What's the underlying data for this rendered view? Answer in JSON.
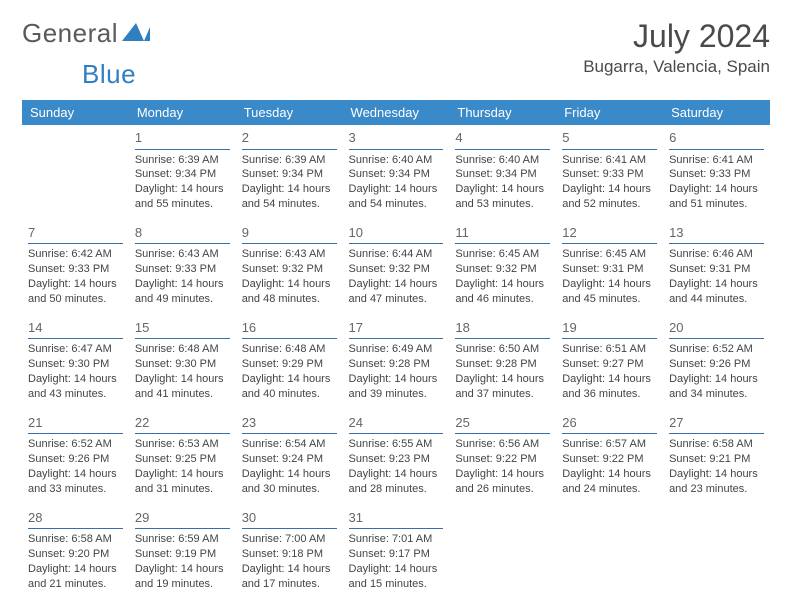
{
  "logo": {
    "part1": "General",
    "part2": "Blue"
  },
  "header": {
    "title": "July 2024",
    "location": "Bugarra, Valencia, Spain"
  },
  "colors": {
    "accent": "#3a89c9",
    "rule": "#3a6fa5",
    "text": "#444",
    "bg": "#ffffff"
  },
  "calendar": {
    "type": "table",
    "columns": [
      "Sunday",
      "Monday",
      "Tuesday",
      "Wednesday",
      "Thursday",
      "Friday",
      "Saturday"
    ],
    "daynum_fontsize": 13,
    "body_fontsize": 11,
    "header_fontsize": 13,
    "weeks": [
      [
        {
          "day": "",
          "lines": []
        },
        {
          "day": "1",
          "lines": [
            "Sunrise: 6:39 AM",
            "Sunset: 9:34 PM",
            "Daylight: 14 hours",
            "and 55 minutes."
          ]
        },
        {
          "day": "2",
          "lines": [
            "Sunrise: 6:39 AM",
            "Sunset: 9:34 PM",
            "Daylight: 14 hours",
            "and 54 minutes."
          ]
        },
        {
          "day": "3",
          "lines": [
            "Sunrise: 6:40 AM",
            "Sunset: 9:34 PM",
            "Daylight: 14 hours",
            "and 54 minutes."
          ]
        },
        {
          "day": "4",
          "lines": [
            "Sunrise: 6:40 AM",
            "Sunset: 9:34 PM",
            "Daylight: 14 hours",
            "and 53 minutes."
          ]
        },
        {
          "day": "5",
          "lines": [
            "Sunrise: 6:41 AM",
            "Sunset: 9:33 PM",
            "Daylight: 14 hours",
            "and 52 minutes."
          ]
        },
        {
          "day": "6",
          "lines": [
            "Sunrise: 6:41 AM",
            "Sunset: 9:33 PM",
            "Daylight: 14 hours",
            "and 51 minutes."
          ]
        }
      ],
      [
        {
          "day": "7",
          "lines": [
            "Sunrise: 6:42 AM",
            "Sunset: 9:33 PM",
            "Daylight: 14 hours",
            "and 50 minutes."
          ]
        },
        {
          "day": "8",
          "lines": [
            "Sunrise: 6:43 AM",
            "Sunset: 9:33 PM",
            "Daylight: 14 hours",
            "and 49 minutes."
          ]
        },
        {
          "day": "9",
          "lines": [
            "Sunrise: 6:43 AM",
            "Sunset: 9:32 PM",
            "Daylight: 14 hours",
            "and 48 minutes."
          ]
        },
        {
          "day": "10",
          "lines": [
            "Sunrise: 6:44 AM",
            "Sunset: 9:32 PM",
            "Daylight: 14 hours",
            "and 47 minutes."
          ]
        },
        {
          "day": "11",
          "lines": [
            "Sunrise: 6:45 AM",
            "Sunset: 9:32 PM",
            "Daylight: 14 hours",
            "and 46 minutes."
          ]
        },
        {
          "day": "12",
          "lines": [
            "Sunrise: 6:45 AM",
            "Sunset: 9:31 PM",
            "Daylight: 14 hours",
            "and 45 minutes."
          ]
        },
        {
          "day": "13",
          "lines": [
            "Sunrise: 6:46 AM",
            "Sunset: 9:31 PM",
            "Daylight: 14 hours",
            "and 44 minutes."
          ]
        }
      ],
      [
        {
          "day": "14",
          "lines": [
            "Sunrise: 6:47 AM",
            "Sunset: 9:30 PM",
            "Daylight: 14 hours",
            "and 43 minutes."
          ]
        },
        {
          "day": "15",
          "lines": [
            "Sunrise: 6:48 AM",
            "Sunset: 9:30 PM",
            "Daylight: 14 hours",
            "and 41 minutes."
          ]
        },
        {
          "day": "16",
          "lines": [
            "Sunrise: 6:48 AM",
            "Sunset: 9:29 PM",
            "Daylight: 14 hours",
            "and 40 minutes."
          ]
        },
        {
          "day": "17",
          "lines": [
            "Sunrise: 6:49 AM",
            "Sunset: 9:28 PM",
            "Daylight: 14 hours",
            "and 39 minutes."
          ]
        },
        {
          "day": "18",
          "lines": [
            "Sunrise: 6:50 AM",
            "Sunset: 9:28 PM",
            "Daylight: 14 hours",
            "and 37 minutes."
          ]
        },
        {
          "day": "19",
          "lines": [
            "Sunrise: 6:51 AM",
            "Sunset: 9:27 PM",
            "Daylight: 14 hours",
            "and 36 minutes."
          ]
        },
        {
          "day": "20",
          "lines": [
            "Sunrise: 6:52 AM",
            "Sunset: 9:26 PM",
            "Daylight: 14 hours",
            "and 34 minutes."
          ]
        }
      ],
      [
        {
          "day": "21",
          "lines": [
            "Sunrise: 6:52 AM",
            "Sunset: 9:26 PM",
            "Daylight: 14 hours",
            "and 33 minutes."
          ]
        },
        {
          "day": "22",
          "lines": [
            "Sunrise: 6:53 AM",
            "Sunset: 9:25 PM",
            "Daylight: 14 hours",
            "and 31 minutes."
          ]
        },
        {
          "day": "23",
          "lines": [
            "Sunrise: 6:54 AM",
            "Sunset: 9:24 PM",
            "Daylight: 14 hours",
            "and 30 minutes."
          ]
        },
        {
          "day": "24",
          "lines": [
            "Sunrise: 6:55 AM",
            "Sunset: 9:23 PM",
            "Daylight: 14 hours",
            "and 28 minutes."
          ]
        },
        {
          "day": "25",
          "lines": [
            "Sunrise: 6:56 AM",
            "Sunset: 9:22 PM",
            "Daylight: 14 hours",
            "and 26 minutes."
          ]
        },
        {
          "day": "26",
          "lines": [
            "Sunrise: 6:57 AM",
            "Sunset: 9:22 PM",
            "Daylight: 14 hours",
            "and 24 minutes."
          ]
        },
        {
          "day": "27",
          "lines": [
            "Sunrise: 6:58 AM",
            "Sunset: 9:21 PM",
            "Daylight: 14 hours",
            "and 23 minutes."
          ]
        }
      ],
      [
        {
          "day": "28",
          "lines": [
            "Sunrise: 6:58 AM",
            "Sunset: 9:20 PM",
            "Daylight: 14 hours",
            "and 21 minutes."
          ]
        },
        {
          "day": "29",
          "lines": [
            "Sunrise: 6:59 AM",
            "Sunset: 9:19 PM",
            "Daylight: 14 hours",
            "and 19 minutes."
          ]
        },
        {
          "day": "30",
          "lines": [
            "Sunrise: 7:00 AM",
            "Sunset: 9:18 PM",
            "Daylight: 14 hours",
            "and 17 minutes."
          ]
        },
        {
          "day": "31",
          "lines": [
            "Sunrise: 7:01 AM",
            "Sunset: 9:17 PM",
            "Daylight: 14 hours",
            "and 15 minutes."
          ]
        },
        {
          "day": "",
          "lines": []
        },
        {
          "day": "",
          "lines": []
        },
        {
          "day": "",
          "lines": []
        }
      ]
    ]
  }
}
